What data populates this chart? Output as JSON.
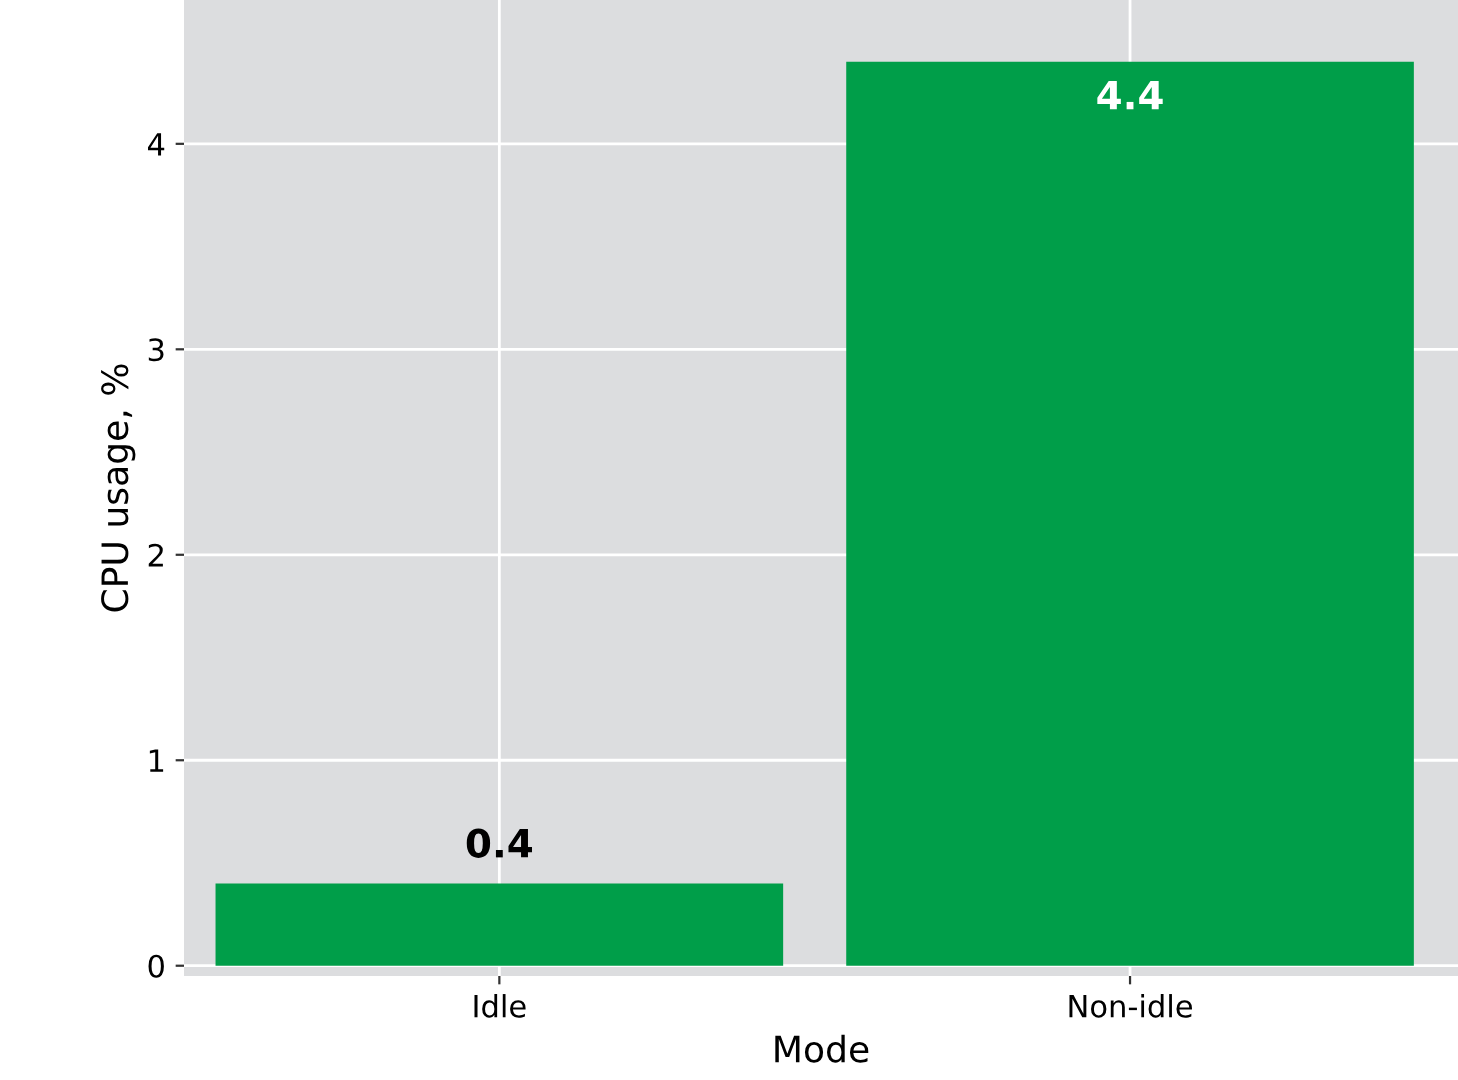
{
  "chart_data": {
    "type": "bar",
    "xlabel": "Mode",
    "ylabel": "CPU usage, %",
    "categories": [
      "Idle",
      "Non-idle"
    ],
    "values": [
      0.4,
      4.4
    ],
    "color": "#009e49",
    "ylim": [
      -0.05,
      4.7
    ],
    "yticks": [
      0,
      1,
      2,
      3,
      4
    ],
    "grid": true,
    "data_labels": true
  }
}
